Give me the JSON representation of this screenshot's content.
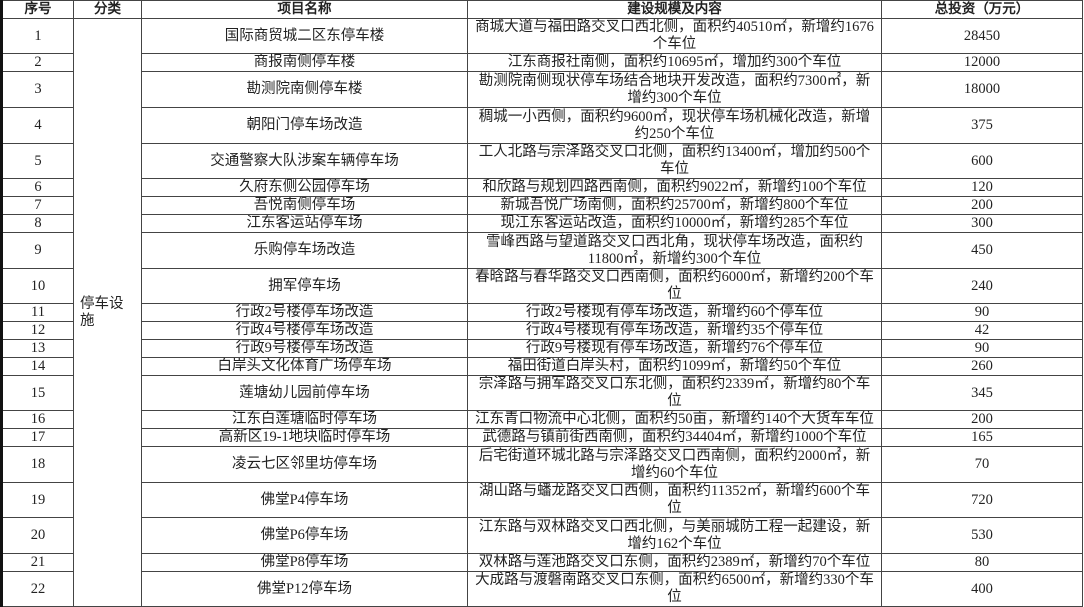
{
  "headers": [
    "序号",
    "分类",
    "项目名称",
    "建设规模及内容",
    "总投资（万元）"
  ],
  "category": "停车设施",
  "rows": [
    {
      "no": "1",
      "name": "国际商贸城二区东停车楼",
      "desc": "商城大道与福田路交叉口西北侧，面积约40510㎡，新增约1676个车位",
      "invest": "28450"
    },
    {
      "no": "2",
      "name": "商报南侧停车楼",
      "desc": "江东商报社南侧，面积约10695㎡，增加约300个车位",
      "invest": "12000"
    },
    {
      "no": "3",
      "name": "勘测院南侧停车楼",
      "desc": "勘测院南侧现状停车场结合地块开发改造，面积约7300㎡，新增约300个车位",
      "invest": "18000"
    },
    {
      "no": "4",
      "name": "朝阳门停车场改造",
      "desc": "稠城一小西侧，面积约9600㎡，现状停车场机械化改造，新增约250个车位",
      "invest": "375"
    },
    {
      "no": "5",
      "name": "交通警察大队涉案车辆停车场",
      "desc": "工人北路与宗泽路交叉口北侧，面积约13400㎡，增加约500个车位",
      "invest": "600"
    },
    {
      "no": "6",
      "name": "久府东侧公园停车场",
      "desc": "和欣路与规划四路西南侧，面积约9022㎡，新增约100个车位",
      "invest": "120"
    },
    {
      "no": "7",
      "name": "吾悦南侧停车场",
      "desc": "新城吾悦广场南侧，面积约25700㎡，新增约800个车位",
      "invest": "200"
    },
    {
      "no": "8",
      "name": "江东客运站停车场",
      "desc": "现江东客运站改造，面积约10000㎡，新增约285个车位",
      "invest": "300"
    },
    {
      "no": "9",
      "name": "乐购停车场改造",
      "desc": "雪峰西路与望道路交叉口西北角，现状停车场改造，面积约11800㎡，新增约300个车位",
      "invest": "450"
    },
    {
      "no": "10",
      "name": "拥军停车场",
      "desc": "春晗路与春华路交叉口西南侧，面积约6000㎡，新增约200个车位",
      "invest": "240"
    },
    {
      "no": "11",
      "name": "行政2号楼停车场改造",
      "desc": "行政2号楼现有停车场改造，新增约60个停车位",
      "invest": "90"
    },
    {
      "no": "12",
      "name": "行政4号楼停车场改造",
      "desc": "行政4号楼现有停车场改造，新增约35个停车位",
      "invest": "42"
    },
    {
      "no": "13",
      "name": "行政9号楼停车场改造",
      "desc": "行政9号楼现有停车场改造，新增约76个停车位",
      "invest": "90"
    },
    {
      "no": "14",
      "name": "白岸头文化体育广场停车场",
      "desc": "福田街道白岸头村，面积约1099㎡，新增约50个车位",
      "invest": "260"
    },
    {
      "no": "15",
      "name": "莲塘幼儿园前停车场",
      "desc": "宗泽路与拥军路交叉口东北侧，面积约2339㎡，新增约80个车位",
      "invest": "345"
    },
    {
      "no": "16",
      "name": "江东白莲塘临时停车场",
      "desc": "江东青口物流中心北侧，面积约50亩，新增约140个大货车车位",
      "invest": "200"
    },
    {
      "no": "17",
      "name": "高新区19-1地块临时停车场",
      "desc": "武德路与镇前街西南侧，面积约34404㎡，新增约1000个车位",
      "invest": "165"
    },
    {
      "no": "18",
      "name": "凌云七区邻里坊停车场",
      "desc": "后宅街道环城北路与宗泽路交叉口西南侧，面积约2000㎡，新增约60个车位",
      "invest": "70"
    },
    {
      "no": "19",
      "name": "佛堂P4停车场",
      "desc": "湖山路与蟠龙路交叉口西侧，面积约11352㎡，新增约600个车位",
      "invest": "720"
    },
    {
      "no": "20",
      "name": "佛堂P6停车场",
      "desc": "江东路与双林路交叉口西北侧，与美丽城防工程一起建设，新增约162个车位",
      "invest": "530"
    },
    {
      "no": "21",
      "name": "佛堂P8停车场",
      "desc": "双林路与莲池路交叉口东侧，面积约2389㎡，新增约70个车位",
      "invest": "80"
    },
    {
      "no": "22",
      "name": "佛堂P12停车场",
      "desc": "大成路与渡磐南路交叉口东侧，面积约6500㎡，新增约330个车位",
      "invest": "400"
    }
  ]
}
